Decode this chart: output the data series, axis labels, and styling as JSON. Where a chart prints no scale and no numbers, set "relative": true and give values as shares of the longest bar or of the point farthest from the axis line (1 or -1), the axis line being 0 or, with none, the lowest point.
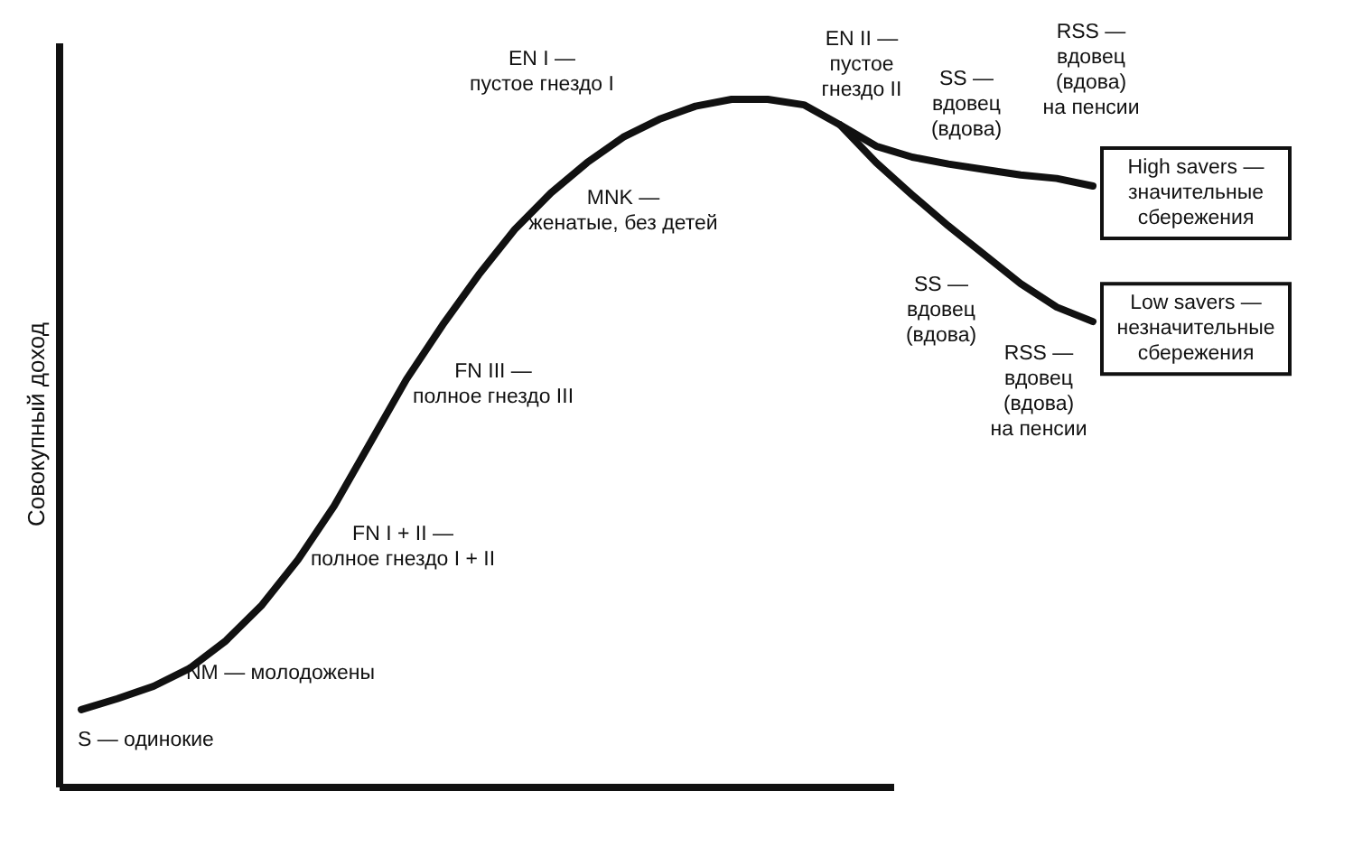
{
  "chart_data": {
    "type": "line",
    "relative": true,
    "ylabel": "Совокупный доход",
    "categories": [
      null,
      null,
      null,
      null,
      null,
      null,
      null,
      null,
      null,
      null,
      null,
      null,
      null,
      null,
      null,
      null,
      null,
      null,
      null,
      null,
      null,
      null,
      null,
      null,
      null,
      null,
      null,
      null,
      null
    ],
    "series": [
      {
        "name": "High savers —\nзначительные\nсбережения",
        "color": "#111111",
        "values": [
          0.113,
          0.129,
          0.147,
          0.173,
          0.213,
          0.265,
          0.331,
          0.409,
          0.501,
          0.593,
          0.672,
          0.745,
          0.811,
          0.864,
          0.908,
          0.945,
          0.971,
          0.99,
          1.0,
          1.0,
          0.992,
          0.963,
          0.932,
          0.916,
          0.906,
          0.898,
          0.89,
          0.885,
          0.874
        ]
      },
      {
        "name": "Low savers —\nнезначительные\nсбережения",
        "color": "#111111",
        "values": [
          null,
          null,
          null,
          null,
          null,
          null,
          null,
          null,
          null,
          null,
          null,
          null,
          null,
          null,
          null,
          null,
          null,
          null,
          null,
          null,
          null,
          0.963,
          0.908,
          0.861,
          0.816,
          0.774,
          0.732,
          0.698,
          0.677
        ]
      }
    ],
    "annotations": [
      "S — одинокие",
      "NM — молодожены",
      "FN I + II —\nполное гнездо I + II",
      "FN III —\nполное гнездо III",
      "MNK —\nженатые, без детей",
      "EN I —\nпустое гнездо I",
      "EN II —\nпустое\nгнездо II",
      "SS —\nвдовец\n(вдова)",
      "RSS —\nвдовец\n(вдова)\nна пенсии",
      "SS —\nвдовец\n(вдова)",
      "RSS —\nвдовец\n(вдова)\nна пенсии"
    ],
    "grid": false,
    "marker": "none",
    "line_style": "solid"
  }
}
